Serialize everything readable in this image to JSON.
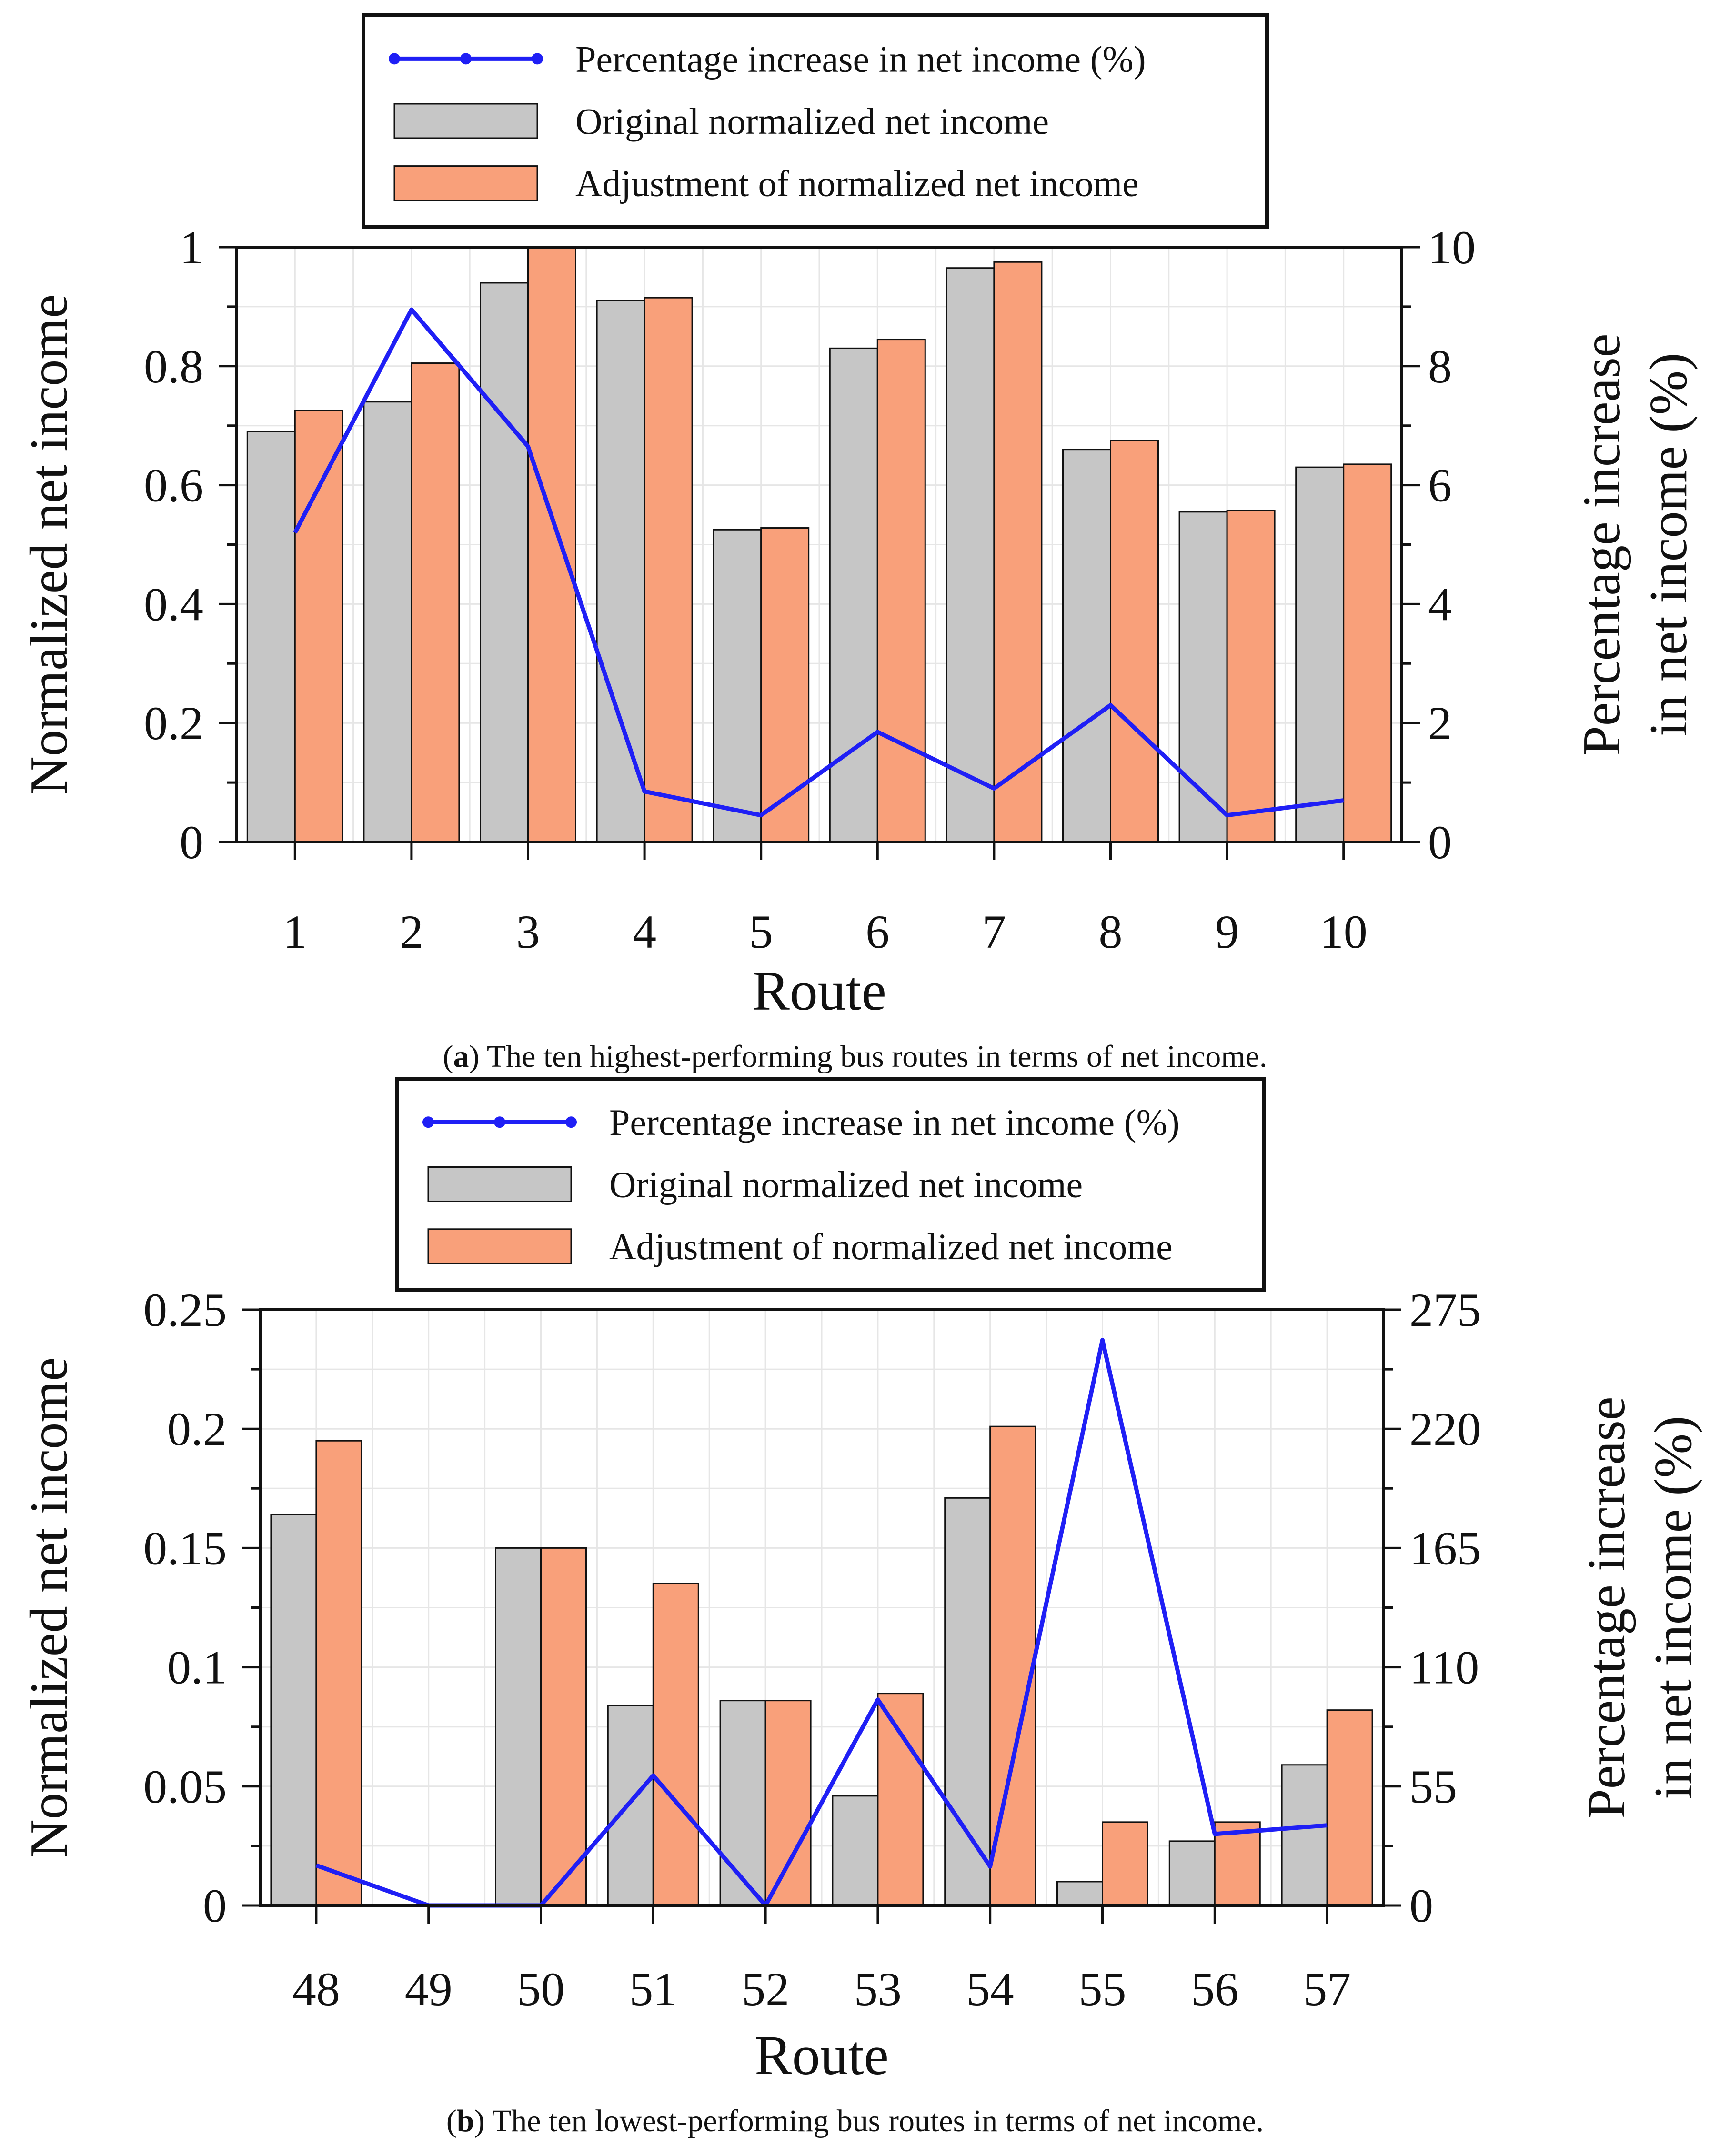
{
  "figure": {
    "background": "#ffffff"
  },
  "colors": {
    "original_bar": "#c6c6c6",
    "adjusted_bar": "#f9a07a",
    "line": "#1f1ff5",
    "axis": "#111111",
    "grid": "#e6e6e6"
  },
  "chart_data": [
    {
      "type": "bar",
      "panel": "a",
      "caption_letter": "a",
      "caption_text": "The ten highest-performing bus routes in terms of net income.",
      "xlabel": "Route",
      "ylabel": "Normalized net income",
      "ylabel_right_line1": "Percentage increase",
      "ylabel_right_line2": "in net income (%)",
      "categories": [
        "1",
        "2",
        "3",
        "4",
        "5",
        "6",
        "7",
        "8",
        "9",
        "10"
      ],
      "ylim": [
        0,
        1
      ],
      "yticks": [
        0,
        0.2,
        0.4,
        0.6,
        0.8,
        1
      ],
      "ytick_labels": [
        "0",
        "0.2",
        "0.4",
        "0.6",
        "0.8",
        "1"
      ],
      "y2lim": [
        0,
        10
      ],
      "y2ticks": [
        0,
        2,
        4,
        6,
        8,
        10
      ],
      "y2tick_labels": [
        "0",
        "2",
        "4",
        "6",
        "8",
        "10"
      ],
      "legend": {
        "position": "top-center",
        "entries": [
          "Percentage increase in net income (%)",
          "Original normalized net income",
          "Adjustment of normalized net income"
        ]
      },
      "series": [
        {
          "name": "Original normalized net income",
          "kind": "bar",
          "values": [
            0.69,
            0.74,
            0.94,
            0.91,
            0.525,
            0.83,
            0.965,
            0.66,
            0.555,
            0.63
          ]
        },
        {
          "name": "Adjustment of normalized net income",
          "kind": "bar",
          "values": [
            0.725,
            0.805,
            1.0,
            0.915,
            0.528,
            0.845,
            0.975,
            0.675,
            0.557,
            0.635
          ]
        },
        {
          "name": "Percentage increase in net income (%)",
          "kind": "line",
          "axis": "right",
          "values": [
            5.2,
            8.95,
            6.65,
            0.85,
            0.45,
            1.85,
            0.9,
            2.3,
            0.45,
            0.7
          ]
        }
      ]
    },
    {
      "type": "bar",
      "panel": "b",
      "caption_letter": "b",
      "caption_text": "The ten lowest-performing bus routes in terms of net income.",
      "xlabel": "Route",
      "ylabel": "Normalized net income",
      "ylabel_right_line1": "Percentage increase",
      "ylabel_right_line2": "in net income (%)",
      "categories": [
        "48",
        "49",
        "50",
        "51",
        "52",
        "53",
        "54",
        "55",
        "56",
        "57"
      ],
      "ylim": [
        0,
        0.25
      ],
      "yticks": [
        0,
        0.05,
        0.1,
        0.15,
        0.2,
        0.25
      ],
      "ytick_labels": [
        "0",
        "0.05",
        "0.1",
        "0.15",
        "0.2",
        "0.25"
      ],
      "y2lim": [
        0,
        275
      ],
      "y2ticks": [
        0,
        55,
        110,
        165,
        220,
        275
      ],
      "y2tick_labels": [
        "0",
        "55",
        "110",
        "165",
        "220",
        "275"
      ],
      "legend": {
        "position": "top-center",
        "entries": [
          "Percentage increase in net income (%)",
          "Original normalized net income",
          "Adjustment of normalized net income"
        ]
      },
      "series": [
        {
          "name": "Original normalized net income",
          "kind": "bar",
          "values": [
            0.164,
            0.0,
            0.15,
            0.084,
            0.086,
            0.046,
            0.171,
            0.01,
            0.027,
            0.059
          ]
        },
        {
          "name": "Adjustment of normalized net income",
          "kind": "bar",
          "values": [
            0.195,
            0.0,
            0.15,
            0.135,
            0.086,
            0.089,
            0.201,
            0.035,
            0.035,
            0.082
          ]
        },
        {
          "name": "Percentage increase in net income (%)",
          "kind": "line",
          "axis": "right",
          "values": [
            18.5,
            0,
            0,
            60,
            0,
            95,
            18,
            261,
            33,
            37
          ]
        }
      ]
    }
  ]
}
